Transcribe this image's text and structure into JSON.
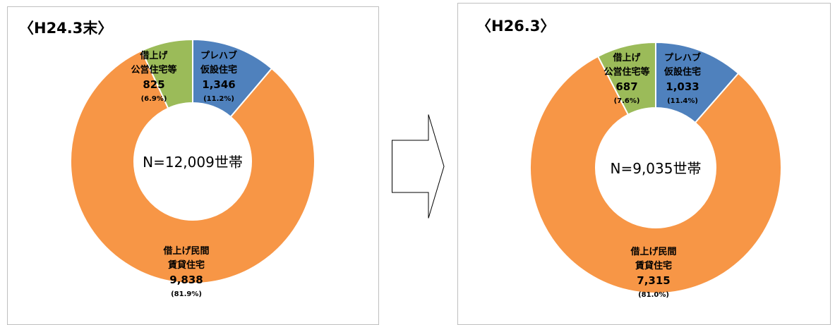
{
  "colors": {
    "prefab": "#4f81bd",
    "private": "#f79646",
    "public": "#9bbb59",
    "edge": "#ffffff"
  },
  "chart_data": [
    {
      "type": "pie",
      "title": "〈H24.3末〉",
      "center_label": "N=12,009世帯",
      "slices": [
        {
          "line1": "プレハブ",
          "line2": "仮設住宅",
          "value": 1346,
          "value_label": "1,346",
          "pct_label": "(11.2%)",
          "color": "prefab"
        },
        {
          "line1": "借上げ民間",
          "line2": "賃貸住宅",
          "value": 9838,
          "value_label": "9,838",
          "pct_label": "(81.9%)",
          "color": "private"
        },
        {
          "line1": "借上げ",
          "line2": "公営住宅等",
          "value": 825,
          "value_label": "825",
          "pct_label": "(6.9%)",
          "color": "public"
        }
      ]
    },
    {
      "type": "pie",
      "title": "〈H26.3〉",
      "center_label": "N=9,035世帯",
      "slices": [
        {
          "line1": "プレハブ",
          "line2": "仮設住宅",
          "value": 1033,
          "value_label": "1,033",
          "pct_label": "(11.4%)",
          "color": "prefab"
        },
        {
          "line1": "借上げ民間",
          "line2": "賃貸住宅",
          "value": 7315,
          "value_label": "7,315",
          "pct_label": "(81.0%)",
          "color": "private"
        },
        {
          "line1": "借上げ",
          "line2": "公営住宅等",
          "value": 687,
          "value_label": "687",
          "pct_label": "(7.6%)",
          "color": "public"
        }
      ]
    }
  ]
}
